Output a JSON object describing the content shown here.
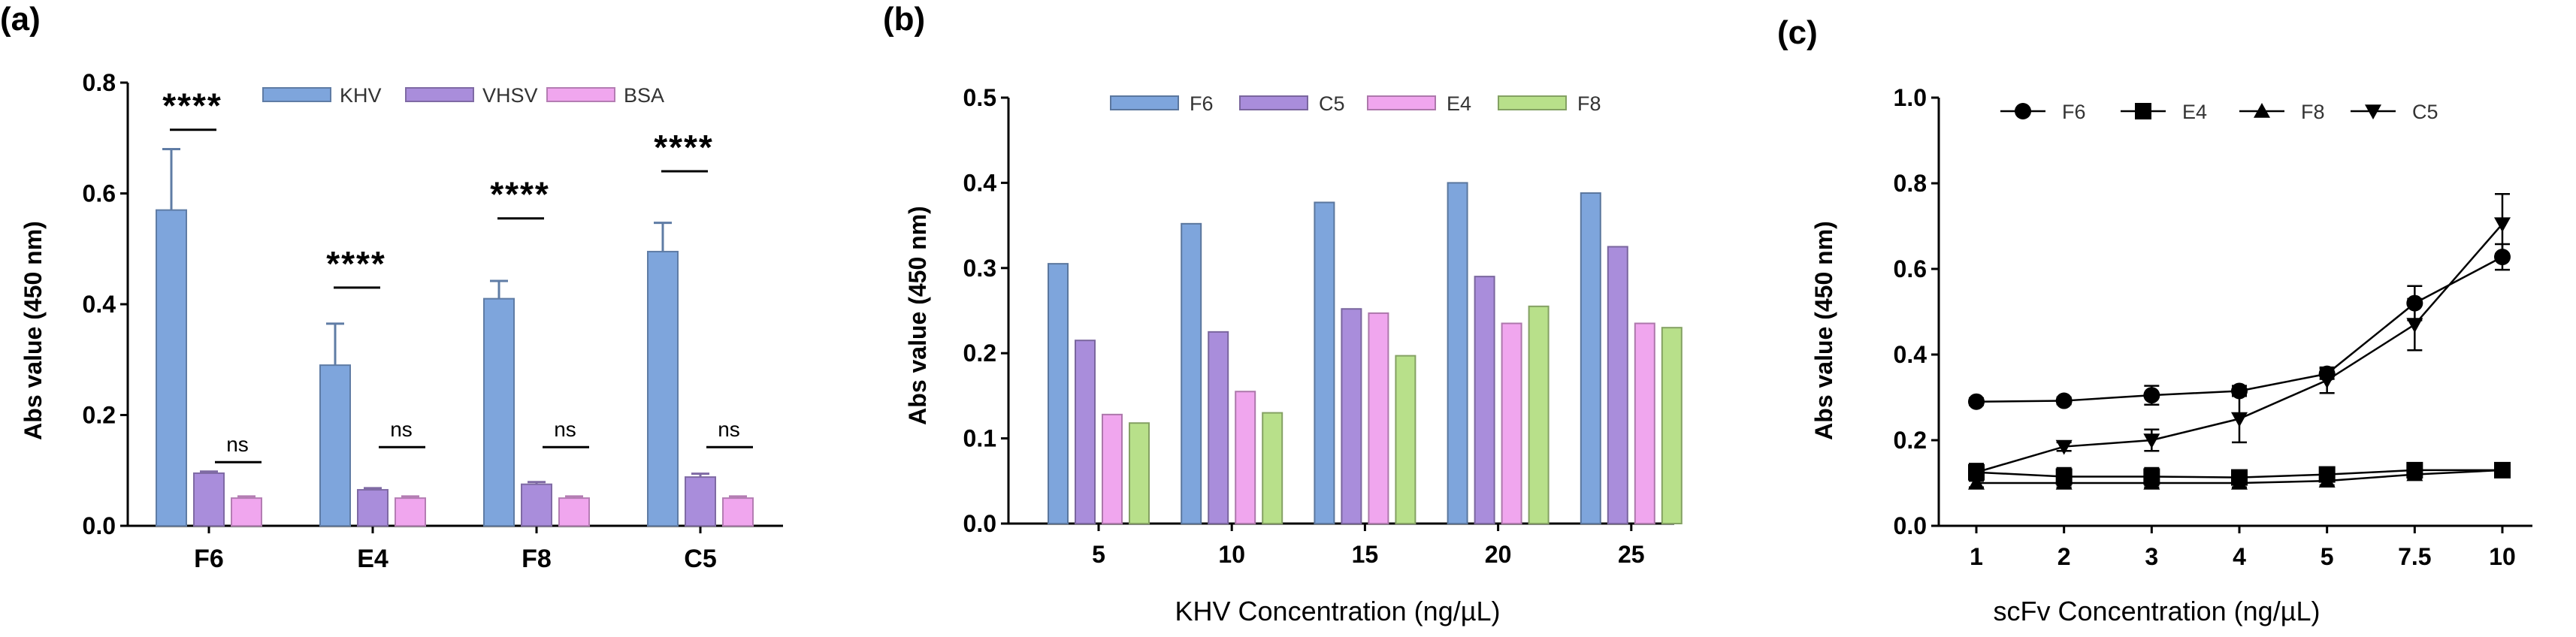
{
  "chart_data": [
    {
      "panel": "(a)",
      "type": "bar",
      "ylabel": "Abs value (450 nm)",
      "ylim": [
        0,
        0.8
      ],
      "yticks": [
        "0.0",
        "0.2",
        "0.4",
        "0.6",
        "0.8"
      ],
      "ytick_values": [
        0,
        0.2,
        0.4,
        0.6,
        0.8
      ],
      "categories": [
        "F6",
        "E4",
        "F8",
        "C5"
      ],
      "series": [
        {
          "name": "KHV",
          "color": "#7ea5dc",
          "values": [
            0.57,
            0.29,
            0.41,
            0.495
          ],
          "errors": [
            0.11,
            0.075,
            0.032,
            0.052
          ]
        },
        {
          "name": "VHSV",
          "color": "#a98ddb",
          "values": [
            0.095,
            0.065,
            0.075,
            0.088
          ],
          "errors": [
            0.003,
            0.003,
            0.004,
            0.006
          ]
        },
        {
          "name": "BSA",
          "color": "#f0a6ee",
          "values": [
            0.05,
            0.05,
            0.05,
            0.05
          ],
          "errors": [
            0.003,
            0.003,
            0.003,
            0.003
          ]
        }
      ],
      "significance": [
        {
          "category": "F6",
          "label": "****",
          "level": 0.715
        },
        {
          "category": "E4",
          "label": "****",
          "level": 0.43
        },
        {
          "category": "F8",
          "label": "****",
          "level": 0.555
        },
        {
          "category": "C5",
          "label": "****",
          "level": 0.64
        }
      ],
      "ns_labels": [
        "ns",
        "ns",
        "ns",
        "ns"
      ],
      "ns_level": 0.115
    },
    {
      "panel": "(b)",
      "type": "bar",
      "xlabel": "KHV Concentration (ng/µL)",
      "ylabel": "Abs value (450 nm)",
      "ylim": [
        0,
        0.5
      ],
      "yticks": [
        "0.0",
        "0.1",
        "0.2",
        "0.3",
        "0.4",
        "0.5"
      ],
      "ytick_values": [
        0,
        0.1,
        0.2,
        0.3,
        0.4,
        0.5
      ],
      "categories": [
        "5",
        "10",
        "15",
        "20",
        "25"
      ],
      "series": [
        {
          "name": "F6",
          "color": "#7ea5dc",
          "values": [
            0.305,
            0.352,
            0.377,
            0.4,
            0.388
          ]
        },
        {
          "name": "C5",
          "color": "#a98ddb",
          "values": [
            0.215,
            0.225,
            0.252,
            0.29,
            0.325
          ]
        },
        {
          "name": "E4",
          "color": "#f0a6ee",
          "values": [
            0.128,
            0.155,
            0.247,
            0.235,
            0.235
          ]
        },
        {
          "name": "F8",
          "color": "#b8e08a",
          "values": [
            0.118,
            0.13,
            0.197,
            0.255,
            0.23
          ]
        }
      ]
    },
    {
      "panel": "(c)",
      "type": "line",
      "xlabel": "scFv Concentration (ng/µL)",
      "ylabel": "Abs value (450 nm)",
      "ylim": [
        0,
        1.0
      ],
      "yticks": [
        "0.0",
        "0.2",
        "0.4",
        "0.6",
        "0.8",
        "1.0"
      ],
      "ytick_values": [
        0,
        0.2,
        0.4,
        0.6,
        0.8,
        1.0
      ],
      "categories": [
        "1",
        "2",
        "3",
        "4",
        "5",
        "7.5",
        "10"
      ],
      "series": [
        {
          "name": "F6",
          "marker": "circle",
          "values": [
            0.29,
            0.292,
            0.305,
            0.315,
            0.355,
            0.52,
            0.628
          ],
          "errors": [
            0.008,
            0.008,
            0.022,
            0.012,
            0.012,
            0.04,
            0.03
          ]
        },
        {
          "name": "E4",
          "marker": "square",
          "values": [
            0.125,
            0.115,
            0.115,
            0.113,
            0.12,
            0.13,
            0.13
          ],
          "errors": [
            0.02,
            0.02,
            0.02,
            0.015,
            0.015,
            0.01,
            0.01
          ]
        },
        {
          "name": "F8",
          "marker": "triangle",
          "values": [
            0.1,
            0.1,
            0.1,
            0.1,
            0.105,
            0.12,
            0.13
          ],
          "errors": [
            0.01,
            0.01,
            0.01,
            0.01,
            0.01,
            0.01,
            0.01
          ]
        },
        {
          "name": "C5",
          "marker": "triangle-down",
          "values": [
            0.125,
            0.185,
            0.2,
            0.25,
            0.34,
            0.47,
            0.705
          ],
          "errors": [
            0.01,
            0.01,
            0.025,
            0.055,
            0.03,
            0.06,
            0.07
          ]
        }
      ]
    }
  ]
}
